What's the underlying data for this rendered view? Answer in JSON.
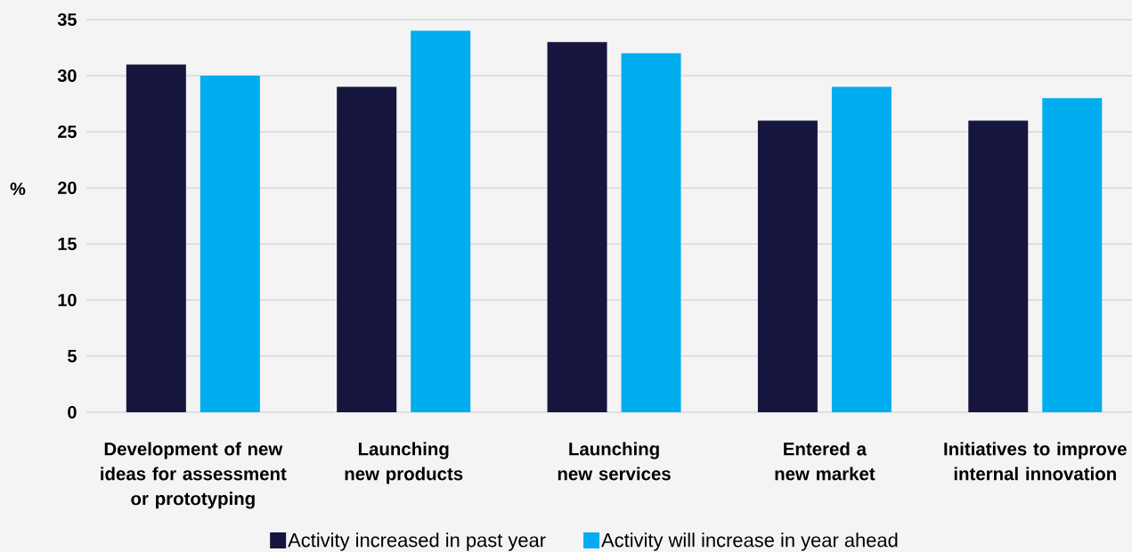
{
  "chart_data": {
    "type": "bar",
    "ylabel": "%",
    "categories": [
      "Development of new ideas for assessment or prototyping",
      "Launching new products",
      "Launching new services",
      "Entered a new market",
      "Initiatives to improve internal innovation"
    ],
    "series": [
      {
        "name": "Activity increased in past year",
        "color": "#16153d",
        "values": [
          31,
          29,
          33,
          26,
          26
        ]
      },
      {
        "name": "Activity will increase in year ahead",
        "color": "#00adef",
        "values": [
          30,
          34,
          32,
          29,
          28
        ]
      }
    ],
    "ylim": [
      0,
      35
    ],
    "yticks": [
      0,
      5,
      10,
      15,
      20,
      25,
      30,
      35
    ],
    "grid": "y",
    "legend": "bottom"
  }
}
